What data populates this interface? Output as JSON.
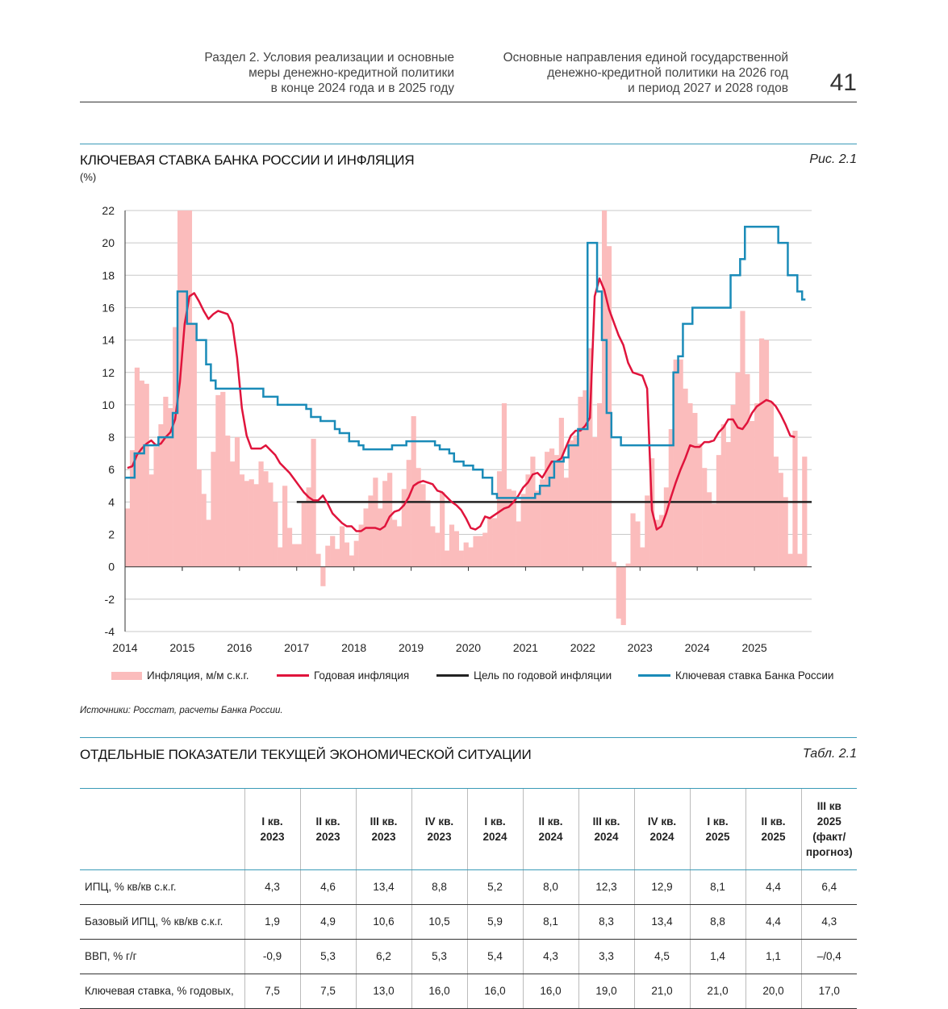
{
  "header": {
    "section": "Раздел 2. Условия реализации и основные\nмеры денежно-кредитной политики\nв конце 2024 года и в 2025 году",
    "document": "Основные направления единой государственной\nденежно-кредитной политики на 2026 год\nи период 2027 и 2028 годов",
    "page_number": "41"
  },
  "figure": {
    "title": "КЛЮЧЕВАЯ СТАВКА БАНКА РОССИИ И ИНФЛЯЦИЯ",
    "unit": "(%)",
    "label": "Рис. 2.1",
    "source": "Источники: Росстат, расчеты Банка России."
  },
  "chart_data": {
    "type": "bar+line",
    "ylim": [
      -4,
      22
    ],
    "yticks": [
      22,
      20,
      18,
      16,
      14,
      12,
      10,
      8,
      6,
      4,
      2,
      0,
      -2,
      -4
    ],
    "xlim": [
      2014,
      2026
    ],
    "xticks": [
      "2014",
      "2015",
      "2016",
      "2017",
      "2018",
      "2019",
      "2020",
      "2021",
      "2022",
      "2023",
      "2024",
      "2025"
    ],
    "grid": true,
    "legend_position": "bottom",
    "start_month": "2014-01",
    "series": [
      {
        "name": "Инфляция, м/м с.к.г.",
        "type": "bar",
        "color": "#fbbcbc",
        "values": [
          3.6,
          7.2,
          12.3,
          11.5,
          11.3,
          5.7,
          7.4,
          8.8,
          10.5,
          9.8,
          14.8,
          22,
          22,
          22,
          15,
          6.0,
          4.5,
          2.9,
          7.1,
          10.6,
          10.8,
          8.1,
          6.5,
          8.0,
          5.7,
          5.3,
          5.4,
          5.1,
          6.5,
          5.9,
          5.2,
          4.0,
          1.2,
          5.0,
          2.4,
          1.4,
          1.4,
          4.0,
          4.9,
          7.9,
          0.8,
          -1.2,
          1.3,
          1.9,
          1.1,
          2.5,
          1.5,
          0.7,
          1.6,
          2.6,
          3.6,
          4.4,
          5.5,
          3.6,
          5.3,
          5.8,
          2.9,
          2.5,
          4.8,
          6.6,
          9.3,
          6.1,
          5.1,
          4.1,
          2.5,
          2.1,
          4.6,
          1.0,
          2.6,
          2.2,
          1.0,
          1.5,
          1.2,
          1.9,
          1.9,
          2.1,
          3.0,
          3.0,
          5.9,
          10.1,
          4.8,
          4.7,
          2.8,
          4.5,
          5.7,
          6.8,
          4.7,
          5.4,
          7.1,
          7.3,
          6.9,
          9.2,
          5.5,
          7.8,
          8.1,
          10.5,
          10.9,
          13.5,
          8.0,
          10.1,
          22,
          19.8,
          0.3,
          -3.2,
          -3.6,
          0.2,
          3.3,
          2.8,
          1.2,
          4.4,
          6.7,
          2.9,
          3.2,
          4.9,
          8.5,
          12.8,
          12.8,
          11.0,
          10.1,
          9.5,
          7.6,
          6.1,
          4.6,
          3.9,
          6.9,
          8.8,
          7.7,
          10.0,
          12.0,
          15.8,
          11.9,
          9.0,
          10.1,
          14.1,
          14.0,
          10.2,
          6.8,
          5.8,
          4.3,
          0.8,
          8.4,
          0.8,
          6.8
        ]
      },
      {
        "name": "Годовая инфляция",
        "type": "line",
        "color": "#e0143c",
        "values": [
          6.1,
          6.2,
          6.9,
          7.3,
          7.6,
          7.8,
          7.5,
          7.6,
          8.0,
          8.3,
          9.1,
          11.4,
          15.0,
          16.7,
          16.9,
          16.4,
          15.8,
          15.3,
          15.6,
          15.8,
          15.7,
          15.6,
          15.0,
          12.9,
          9.8,
          8.1,
          7.3,
          7.3,
          7.3,
          7.5,
          7.2,
          6.9,
          6.4,
          6.1,
          5.8,
          5.4,
          5.0,
          4.6,
          4.3,
          4.1,
          4.1,
          4.4,
          3.9,
          3.3,
          3.0,
          2.7,
          2.5,
          2.5,
          2.2,
          2.2,
          2.4,
          2.4,
          2.4,
          2.3,
          2.5,
          3.1,
          3.4,
          3.5,
          3.8,
          4.3,
          5.0,
          5.2,
          5.3,
          5.2,
          5.1,
          4.7,
          4.6,
          4.3,
          4.0,
          3.8,
          3.5,
          3.0,
          2.4,
          2.3,
          2.5,
          3.1,
          3.0,
          3.2,
          3.4,
          3.6,
          3.7,
          4.0,
          4.4,
          4.9,
          5.2,
          5.7,
          5.8,
          5.5,
          6.0,
          6.5,
          6.5,
          6.7,
          7.4,
          8.1,
          8.4,
          8.4,
          8.7,
          9.2,
          16.7,
          17.8,
          17.1,
          15.9,
          15.1,
          14.3,
          13.7,
          12.6,
          12.0,
          11.9,
          11.8,
          11.0,
          3.5,
          2.3,
          2.5,
          3.3,
          4.3,
          5.2,
          6.0,
          6.7,
          7.5,
          7.4,
          7.4,
          7.7,
          7.7,
          7.8,
          8.3,
          8.6,
          9.1,
          9.1,
          8.6,
          8.5,
          8.9,
          9.5,
          9.9,
          10.1,
          10.3,
          10.2,
          9.9,
          9.4,
          8.8,
          8.1,
          8.0
        ]
      },
      {
        "name": "Цель по годовой инфляции",
        "type": "line",
        "color": "#222222",
        "from": "2017-01",
        "value": 4
      },
      {
        "name": "Ключевая ставка Банка России",
        "type": "step",
        "color": "#1a8bb8",
        "values": [
          5.5,
          5.5,
          7,
          7,
          7.5,
          7.5,
          7.5,
          8,
          8,
          8,
          9.5,
          17,
          17,
          15,
          15,
          14,
          14,
          12.5,
          11.5,
          11,
          11,
          11,
          11,
          11,
          11,
          11,
          11,
          11,
          11,
          10.5,
          10.5,
          10.5,
          10,
          10,
          10,
          10,
          10,
          10,
          9.75,
          9.25,
          9.25,
          9,
          9,
          9,
          8.5,
          8.25,
          8.25,
          7.75,
          7.75,
          7.5,
          7.25,
          7.25,
          7.25,
          7.25,
          7.25,
          7.25,
          7.5,
          7.5,
          7.5,
          7.75,
          7.75,
          7.75,
          7.75,
          7.75,
          7.75,
          7.5,
          7.25,
          7.25,
          7,
          6.5,
          6.5,
          6.25,
          6.25,
          6,
          6,
          5.5,
          5.5,
          4.5,
          4.25,
          4.25,
          4.25,
          4.25,
          4.25,
          4.25,
          4.25,
          4.25,
          4.5,
          5,
          5,
          5.5,
          6.5,
          6.5,
          6.75,
          7.5,
          7.5,
          8.5,
          8.5,
          20,
          20,
          17,
          14,
          9.5,
          8,
          8,
          7.5,
          7.5,
          7.5,
          7.5,
          7.5,
          7.5,
          7.5,
          7.5,
          7.5,
          7.5,
          7.5,
          12,
          13,
          15,
          15,
          16,
          16,
          16,
          16,
          16,
          16,
          16,
          16,
          18,
          18,
          19,
          21,
          21,
          21,
          21,
          21,
          21,
          21,
          20,
          20,
          18,
          18,
          17,
          16.5
        ]
      }
    ]
  },
  "table": {
    "title": "ОТДЕЛЬНЫЕ ПОКАЗАТЕЛИ ТЕКУЩЕЙ ЭКОНОМИЧЕСКОЙ СИТУАЦИИ",
    "label": "Табл. 2.1",
    "columns": [
      "I кв.\n2023",
      "II кв.\n2023",
      "III кв.\n2023",
      "IV кв.\n2023",
      "I кв.\n2024",
      "II кв.\n2024",
      "III кв.\n2024",
      "IV кв.\n2024",
      "I кв.\n2025",
      "II кв.\n2025",
      "III кв\n2025\n(факт/\nпрогноз)"
    ],
    "rows": [
      {
        "label": "ИПЦ, % кв/кв с.к.г.",
        "values": [
          "4,3",
          "4,6",
          "13,4",
          "8,8",
          "5,2",
          "8,0",
          "12,3",
          "12,9",
          "8,1",
          "4,4",
          "6,4"
        ]
      },
      {
        "label": "Базовый ИПЦ, % кв/кв с.к.г.",
        "values": [
          "1,9",
          "4,9",
          "10,6",
          "10,5",
          "5,9",
          "8,1",
          "8,3",
          "13,4",
          "8,8",
          "4,4",
          "4,3"
        ]
      },
      {
        "label": "ВВП, % г/г",
        "values": [
          "-0,9",
          "5,3",
          "6,2",
          "5,3",
          "5,4",
          "4,3",
          "3,3",
          "4,5",
          "1,4",
          "1,1",
          "–/0,4"
        ]
      },
      {
        "label": "Ключевая ставка, % годовых,",
        "values": [
          "7,5",
          "7,5",
          "13,0",
          "16,0",
          "16,0",
          "16,0",
          "19,0",
          "21,0",
          "21,0",
          "20,0",
          "17,0"
        ]
      }
    ]
  }
}
